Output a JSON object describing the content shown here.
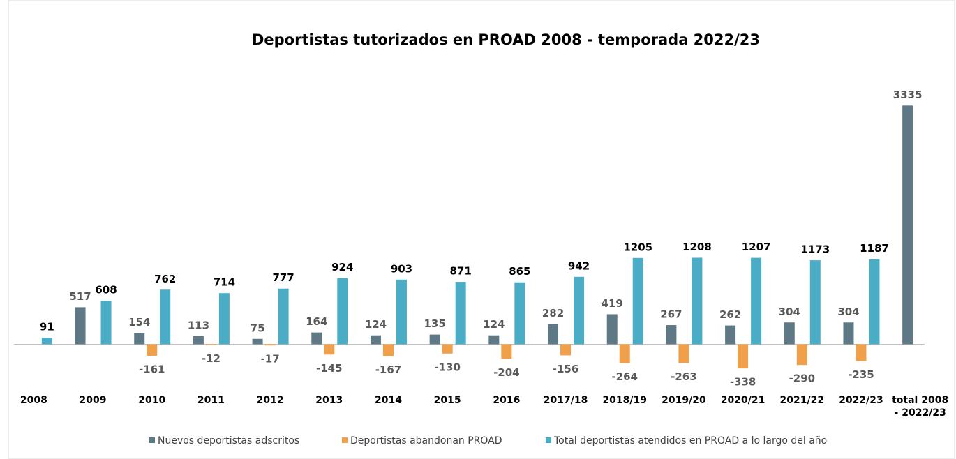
{
  "chart_data": {
    "type": "bar",
    "title": "Deportistas tutorizados en PROAD 2008 - temporada 2022/23",
    "categories": [
      "2008",
      "2009",
      "2010",
      "2011",
      "2012",
      "2013",
      "2014",
      "2015",
      "2016",
      "2017/18",
      "2018/19",
      "2019/20",
      "2020/21",
      "2021/22",
      "2022/23",
      "total 2008 - 2022/23"
    ],
    "series": [
      {
        "name": "Nuevos deportistas adscritos",
        "color": "#5f7886",
        "values": [
          null,
          517,
          154,
          113,
          75,
          164,
          124,
          135,
          124,
          282,
          419,
          267,
          262,
          304,
          304,
          3335
        ]
      },
      {
        "name": "Deportistas abandonan PROAD",
        "color": "#f0a04b",
        "values": [
          null,
          null,
          -161,
          -12,
          -17,
          -145,
          -167,
          -130,
          -204,
          -156,
          -264,
          -263,
          -338,
          -290,
          -235,
          null
        ]
      },
      {
        "name": "Total deportistas atendidos en PROAD a lo largo del año",
        "color": "#4bacc6",
        "values": [
          91,
          608,
          762,
          714,
          777,
          924,
          903,
          871,
          865,
          942,
          1205,
          1208,
          1207,
          1173,
          1187,
          null
        ]
      }
    ],
    "ylim": [
      -600,
      3650
    ]
  }
}
